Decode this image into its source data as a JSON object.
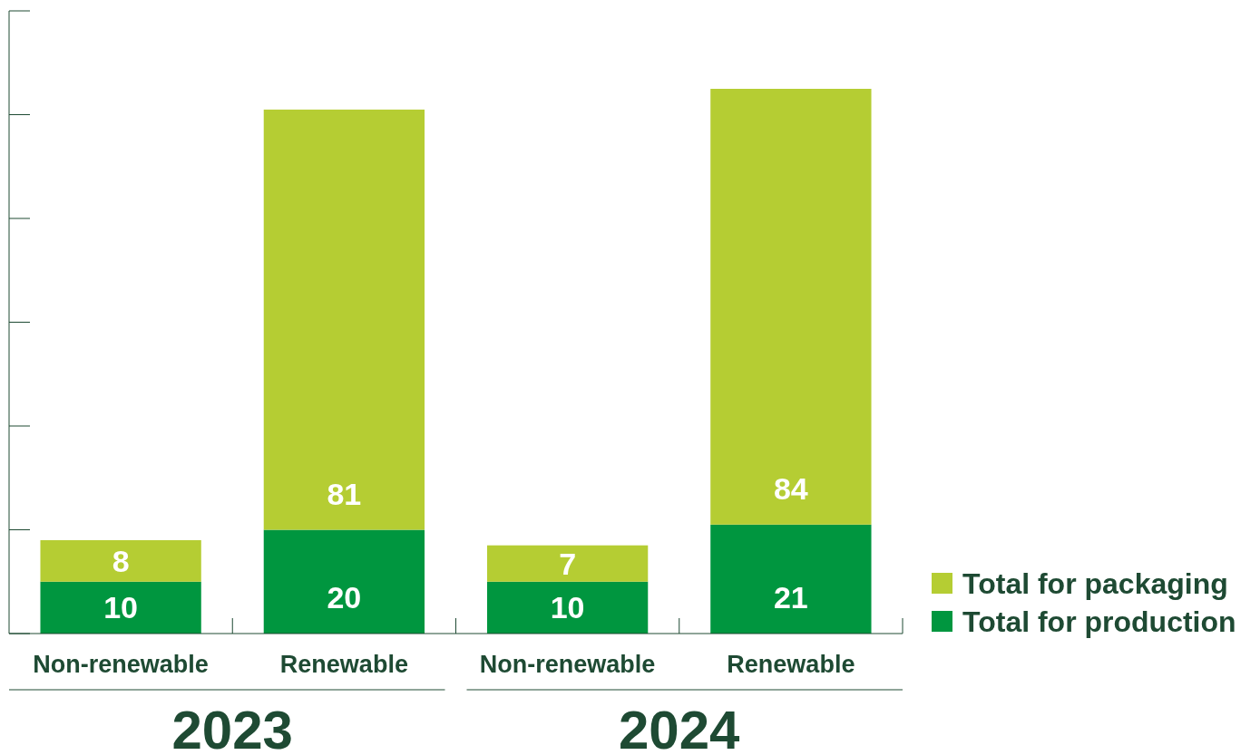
{
  "chart_data": {
    "type": "bar",
    "stacked": true,
    "categories": [
      "Non-renewable",
      "Renewable",
      "Non-renewable",
      "Renewable"
    ],
    "series": [
      {
        "name": "Total for production",
        "color": "#00963f",
        "values": [
          10,
          20,
          10,
          21
        ]
      },
      {
        "name": "Total for packaging",
        "color": "#b5cd33",
        "values": [
          8,
          81,
          7,
          84
        ]
      }
    ],
    "data_labels": true,
    "legend": "bottom right",
    "annotations": [
      "2023",
      "2024"
    ]
  }
}
